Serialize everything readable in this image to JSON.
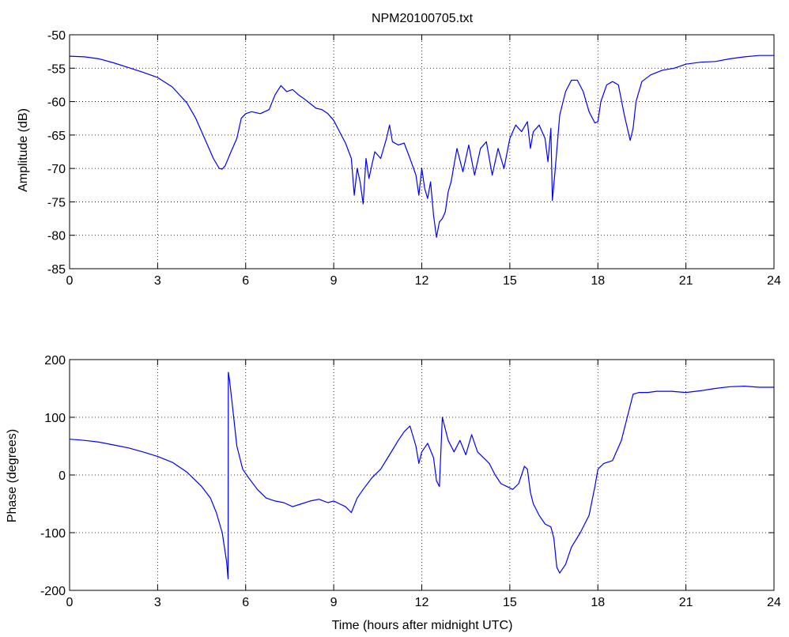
{
  "figure_title": "NPM20100705.txt",
  "chart_data": [
    {
      "type": "line",
      "title": "NPM20100705.txt",
      "xlabel": "",
      "ylabel": "Amplitude (dB)",
      "xlim": [
        0,
        24
      ],
      "ylim": [
        -85,
        -50
      ],
      "xticks": [
        0,
        3,
        6,
        9,
        12,
        15,
        18,
        21,
        24
      ],
      "yticks": [
        -85,
        -80,
        -75,
        -70,
        -65,
        -60,
        -55,
        -50
      ],
      "grid": true,
      "line_color": "#0000ff",
      "series": [
        {
          "x": [
            0,
            0.5,
            1,
            1.5,
            2,
            2.5,
            3,
            3.5,
            4,
            4.3,
            4.6,
            4.9,
            5.1,
            5.2,
            5.3,
            5.5,
            5.7,
            5.85,
            6.0,
            6.2,
            6.5,
            6.8,
            7.0,
            7.2,
            7.4,
            7.6,
            7.8,
            8.0,
            8.2,
            8.4,
            8.6,
            8.8,
            9.0,
            9.2,
            9.4,
            9.6,
            9.7,
            9.8,
            9.9,
            10.0,
            10.1,
            10.2,
            10.4,
            10.6,
            10.8,
            10.9,
            11.0,
            11.2,
            11.4,
            11.6,
            11.8,
            11.9,
            12.0,
            12.1,
            12.2,
            12.3,
            12.4,
            12.5,
            12.6,
            12.7,
            12.8,
            12.9,
            13.0,
            13.2,
            13.4,
            13.6,
            13.8,
            14.0,
            14.2,
            14.4,
            14.6,
            14.8,
            15.0,
            15.2,
            15.4,
            15.6,
            15.7,
            15.8,
            16.0,
            16.2,
            16.3,
            16.4,
            16.45,
            16.55,
            16.7,
            16.9,
            17.1,
            17.3,
            17.5,
            17.7,
            17.9,
            18.0,
            18.1,
            18.3,
            18.5,
            18.7,
            18.9,
            19.1,
            19.2,
            19.3,
            19.5,
            19.8,
            20.2,
            20.6,
            21.0,
            21.5,
            22.0,
            22.5,
            23.0,
            23.5,
            24.0
          ],
          "y": [
            -53.2,
            -53.3,
            -53.6,
            -54.2,
            -54.9,
            -55.6,
            -56.4,
            -57.8,
            -60.2,
            -62.5,
            -65.5,
            -68.5,
            -70.0,
            -70.1,
            -69.6,
            -67.5,
            -65.5,
            -62.5,
            -61.8,
            -61.5,
            -61.8,
            -61.2,
            -59.0,
            -57.6,
            -58.5,
            -58.2,
            -59.0,
            -59.6,
            -60.3,
            -61.0,
            -61.2,
            -61.8,
            -62.8,
            -64.5,
            -66.2,
            -68.5,
            -74.0,
            -70.0,
            -72.0,
            -75.3,
            -68.5,
            -71.5,
            -67.5,
            -68.5,
            -65.5,
            -63.5,
            -66.0,
            -66.5,
            -66.2,
            -68.5,
            -71.0,
            -74.0,
            -70.0,
            -73.0,
            -74.5,
            -72.0,
            -77.0,
            -80.3,
            -78.0,
            -77.5,
            -76.5,
            -73.5,
            -72.0,
            -67.0,
            -70.5,
            -66.5,
            -71.0,
            -67.0,
            -66.0,
            -71.0,
            -67.0,
            -70.0,
            -65.5,
            -63.5,
            -64.5,
            -63.0,
            -67.0,
            -64.5,
            -63.5,
            -65.5,
            -69.0,
            -64.0,
            -74.8,
            -70.0,
            -62.0,
            -58.5,
            -56.8,
            -56.8,
            -58.5,
            -61.5,
            -63.2,
            -63.0,
            -60.0,
            -57.5,
            -57.0,
            -57.5,
            -62.0,
            -65.8,
            -64.0,
            -60.0,
            -57.0,
            -56.0,
            -55.3,
            -55.0,
            -54.4,
            -54.1,
            -54.0,
            -53.6,
            -53.3,
            -53.1,
            -53.1
          ]
        }
      ]
    },
    {
      "type": "line",
      "title": "",
      "xlabel": "Time (hours after midnight UTC)",
      "ylabel": "Phase (degrees)",
      "xlim": [
        0,
        24
      ],
      "ylim": [
        -200,
        200
      ],
      "xticks": [
        0,
        3,
        6,
        9,
        12,
        15,
        18,
        21,
        24
      ],
      "yticks": [
        -200,
        -100,
        0,
        100,
        200
      ],
      "grid": true,
      "line_color": "#0000ff",
      "series": [
        {
          "x": [
            0,
            0.5,
            1,
            1.5,
            2,
            2.5,
            3,
            3.5,
            4,
            4.5,
            4.8,
            5.0,
            5.2,
            5.35,
            5.4,
            5.41,
            5.45,
            5.55,
            5.7,
            5.9,
            6.1,
            6.4,
            6.7,
            7.0,
            7.3,
            7.6,
            7.9,
            8.2,
            8.5,
            8.8,
            9.0,
            9.2,
            9.4,
            9.6,
            9.8,
            10.0,
            10.3,
            10.6,
            10.9,
            11.2,
            11.4,
            11.6,
            11.8,
            11.9,
            12.0,
            12.2,
            12.4,
            12.5,
            12.6,
            12.7,
            12.9,
            13.1,
            13.3,
            13.5,
            13.7,
            13.9,
            14.1,
            14.3,
            14.5,
            14.7,
            14.9,
            15.1,
            15.3,
            15.5,
            15.6,
            15.7,
            15.8,
            16.0,
            16.2,
            16.4,
            16.5,
            16.6,
            16.7,
            16.9,
            17.1,
            17.4,
            17.7,
            17.9,
            18.0,
            18.2,
            18.5,
            18.8,
            19.0,
            19.2,
            19.4,
            19.7,
            20.0,
            20.5,
            21.0,
            21.5,
            22.0,
            22.5,
            23.0,
            23.5,
            24.0
          ],
          "y": [
            62,
            60,
            57,
            52,
            47,
            40,
            32,
            22,
            5,
            -20,
            -40,
            -65,
            -100,
            -150,
            -180,
            178,
            165,
            120,
            50,
            10,
            -5,
            -25,
            -40,
            -45,
            -48,
            -55,
            -50,
            -45,
            -42,
            -48,
            -45,
            -50,
            -55,
            -65,
            -40,
            -25,
            -5,
            10,
            35,
            60,
            75,
            85,
            50,
            20,
            40,
            55,
            30,
            -10,
            -20,
            100,
            60,
            40,
            60,
            35,
            70,
            40,
            30,
            20,
            0,
            -15,
            -20,
            -25,
            -15,
            15,
            10,
            -30,
            -50,
            -70,
            -85,
            -90,
            -110,
            -160,
            -170,
            -155,
            -125,
            -100,
            -70,
            -20,
            10,
            20,
            25,
            60,
            100,
            140,
            143,
            143,
            145,
            145,
            143,
            146,
            150,
            153,
            154,
            152,
            152
          ]
        }
      ]
    }
  ]
}
